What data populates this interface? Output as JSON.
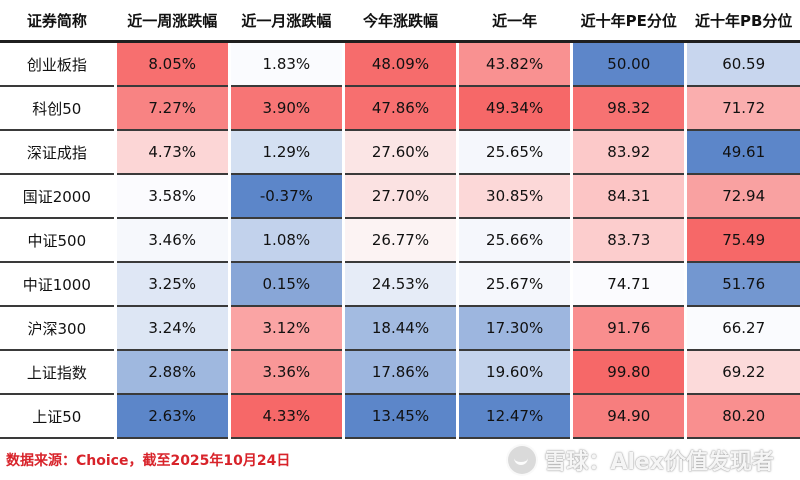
{
  "table": {
    "headers": [
      "证券简称",
      "近一周涨跌幅",
      "近一月涨跌幅",
      "今年涨跌幅",
      "近一年",
      "近十年PE分位",
      "近十年PB分位"
    ],
    "rows": [
      {
        "name": "创业板指",
        "cells": [
          {
            "text": "8.05%",
            "bg": "#f76f6f"
          },
          {
            "text": "1.83%",
            "bg": "#fafbfe"
          },
          {
            "text": "48.09%",
            "bg": "#f66c6c"
          },
          {
            "text": "43.82%",
            "bg": "#f99191"
          },
          {
            "text": "50.00",
            "bg": "#5d86c9"
          },
          {
            "text": "60.59",
            "bg": "#c8d6ee"
          }
        ]
      },
      {
        "name": "科创50",
        "cells": [
          {
            "text": "7.27%",
            "bg": "#f88383"
          },
          {
            "text": "3.90%",
            "bg": "#f77575"
          },
          {
            "text": "47.86%",
            "bg": "#f76f6f"
          },
          {
            "text": "49.34%",
            "bg": "#f66868"
          },
          {
            "text": "98.32",
            "bg": "#f77272"
          },
          {
            "text": "71.72",
            "bg": "#faaeae"
          }
        ]
      },
      {
        "name": "深证成指",
        "cells": [
          {
            "text": "4.73%",
            "bg": "#fcd6d6"
          },
          {
            "text": "1.29%",
            "bg": "#d4e0f2"
          },
          {
            "text": "27.60%",
            "bg": "#fbe5e5"
          },
          {
            "text": "25.65%",
            "bg": "#f5f7fc"
          },
          {
            "text": "83.92",
            "bg": "#fcc9c9"
          },
          {
            "text": "49.61",
            "bg": "#5c86c9"
          }
        ]
      },
      {
        "name": "国证2000",
        "cells": [
          {
            "text": "3.58%",
            "bg": "#fbfbfe"
          },
          {
            "text": "-0.37%",
            "bg": "#5c86c9"
          },
          {
            "text": "27.70%",
            "bg": "#fbe2e2"
          },
          {
            "text": "30.85%",
            "bg": "#fcd8d8"
          },
          {
            "text": "84.31",
            "bg": "#fcc5c5"
          },
          {
            "text": "72.94",
            "bg": "#f9a1a1"
          }
        ]
      },
      {
        "name": "中证500",
        "cells": [
          {
            "text": "3.46%",
            "bg": "#f6f8fc"
          },
          {
            "text": "1.08%",
            "bg": "#c2d2ec"
          },
          {
            "text": "26.77%",
            "bg": "#fcf3f3"
          },
          {
            "text": "25.66%",
            "bg": "#f5f7fc"
          },
          {
            "text": "83.73",
            "bg": "#fccdcd"
          },
          {
            "text": "75.49",
            "bg": "#f66868"
          }
        ]
      },
      {
        "name": "中证1000",
        "cells": [
          {
            "text": "3.25%",
            "bg": "#dfe7f5"
          },
          {
            "text": "0.15%",
            "bg": "#88a6d7"
          },
          {
            "text": "24.53%",
            "bg": "#e6ecf7"
          },
          {
            "text": "25.67%",
            "bg": "#f5f7fc"
          },
          {
            "text": "74.71",
            "bg": "#fbfbfe"
          },
          {
            "text": "51.76",
            "bg": "#7397d0"
          }
        ]
      },
      {
        "name": "沪深300",
        "cells": [
          {
            "text": "3.24%",
            "bg": "#dde6f4"
          },
          {
            "text": "3.12%",
            "bg": "#faa4a4"
          },
          {
            "text": "18.44%",
            "bg": "#a3bbe1"
          },
          {
            "text": "17.30%",
            "bg": "#9db6df"
          },
          {
            "text": "91.76",
            "bg": "#f98e8e"
          },
          {
            "text": "66.27",
            "bg": "#fafbfe"
          }
        ]
      },
      {
        "name": "上证指数",
        "cells": [
          {
            "text": "2.88%",
            "bg": "#9fb8df"
          },
          {
            "text": "3.36%",
            "bg": "#f99797"
          },
          {
            "text": "17.86%",
            "bg": "#9db6df"
          },
          {
            "text": "19.60%",
            "bg": "#c4d3ec"
          },
          {
            "text": "99.80",
            "bg": "#f66868"
          },
          {
            "text": "69.22",
            "bg": "#fcdada"
          }
        ]
      },
      {
        "name": "上证50",
        "cells": [
          {
            "text": "2.63%",
            "bg": "#5c86c9"
          },
          {
            "text": "4.33%",
            "bg": "#f66868"
          },
          {
            "text": "13.45%",
            "bg": "#5c86c9"
          },
          {
            "text": "12.47%",
            "bg": "#5c86c9"
          },
          {
            "text": "94.90",
            "bg": "#f77e7e"
          },
          {
            "text": "80.20",
            "bg": "#f98f8f"
          }
        ]
      }
    ]
  },
  "footer": {
    "source": "数据来源：Choice，截至2025年10月24日",
    "watermark": "雪球：Alex价值发现者"
  }
}
